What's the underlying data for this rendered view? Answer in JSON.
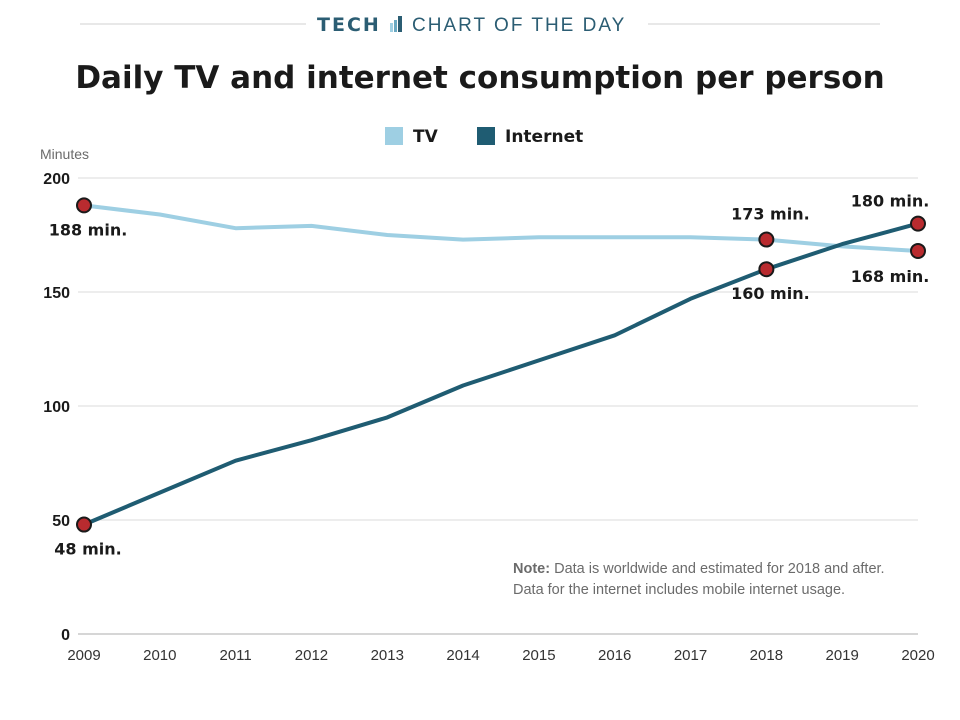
{
  "header": {
    "kicker_bold": "TECH",
    "kicker_light": "CHART OF THE DAY",
    "kicker_color": "#2b5d73"
  },
  "chart_data": {
    "type": "line",
    "title": "Daily TV and internet consumption per person",
    "ylabel": "Minutes",
    "xlabel": "",
    "x": [
      2009,
      2010,
      2011,
      2012,
      2013,
      2014,
      2015,
      2016,
      2017,
      2018,
      2019,
      2020
    ],
    "x_tick_labels": [
      "2009",
      "2010",
      "2011",
      "2012",
      "2013",
      "2014",
      "2015",
      "2016",
      "2017",
      "2018",
      "2019",
      "2020"
    ],
    "ylim": [
      0,
      200
    ],
    "y_ticks": [
      0,
      50,
      100,
      150,
      200
    ],
    "y_tick_labels": [
      "0",
      "50",
      "100",
      "150",
      "200"
    ],
    "grid": true,
    "legend": "top-center",
    "series": [
      {
        "name": "TV",
        "color": "#9ecfe3",
        "values": [
          188,
          184,
          178,
          179,
          175,
          173,
          174,
          174,
          174,
          173,
          170,
          168
        ]
      },
      {
        "name": "Internet",
        "color": "#1f5c72",
        "values": [
          48,
          62,
          76,
          85,
          95,
          109,
          120,
          131,
          147,
          160,
          171,
          180
        ]
      }
    ],
    "annotations": [
      {
        "series": "TV",
        "x": 2009,
        "y": 188,
        "label": "188 min.",
        "position": "below"
      },
      {
        "series": "TV",
        "x": 2018,
        "y": 173,
        "label": "173 min.",
        "position": "above"
      },
      {
        "series": "TV",
        "x": 2020,
        "y": 168,
        "label": "168 min.",
        "position": "below-left"
      },
      {
        "series": "Internet",
        "x": 2009,
        "y": 48,
        "label": "48 min.",
        "position": "below"
      },
      {
        "series": "Internet",
        "x": 2018,
        "y": 160,
        "label": "160 min.",
        "position": "below"
      },
      {
        "series": "Internet",
        "x": 2020,
        "y": 180,
        "label": "180 min.",
        "position": "above-left"
      }
    ],
    "marker_color": "#b92b2f",
    "note": {
      "label": "Note:",
      "line1": " Data is worldwide and estimated for 2018 and after.",
      "line2": "Data for the internet includes mobile internet usage."
    }
  }
}
